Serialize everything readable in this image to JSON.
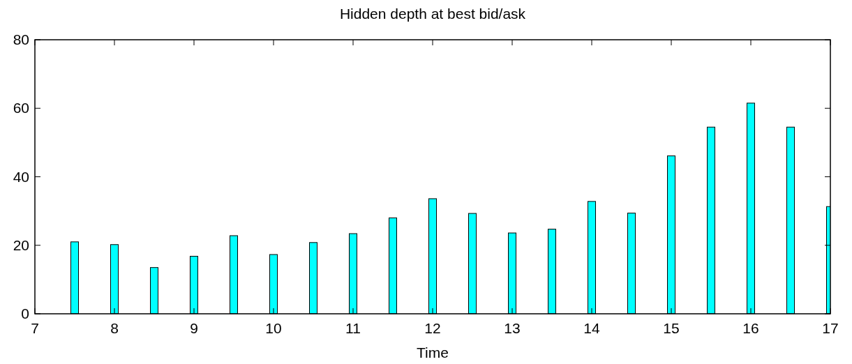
{
  "chart_data": {
    "type": "bar",
    "title": "Hidden depth at best bid/ask",
    "xlabel": "Time",
    "x": [
      7.5,
      8,
      8.5,
      9,
      9.5,
      10,
      10.5,
      11,
      11.5,
      12,
      12.5,
      13,
      13.5,
      14,
      14.5,
      15,
      15.5,
      16,
      16.5,
      17
    ],
    "values": [
      21,
      20.2,
      13.5,
      16.8,
      22.8,
      17.3,
      20.8,
      23.4,
      28,
      33.6,
      29.3,
      23.6,
      24.7,
      32.8,
      29.4,
      46.1,
      54.5,
      61.5,
      54.5,
      31.3
    ],
    "color": "#00ffff",
    "xlim": [
      7,
      17
    ],
    "xticks": [
      7,
      8,
      9,
      10,
      11,
      12,
      13,
      14,
      15,
      16,
      17
    ],
    "ylim": [
      0,
      80
    ],
    "yticks": [
      0,
      20,
      40,
      60,
      80
    ],
    "grid": false
  }
}
